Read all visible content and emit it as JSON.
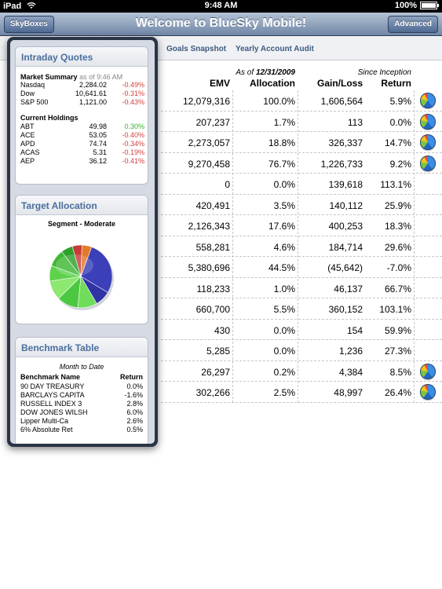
{
  "status": {
    "device": "iPad",
    "time": "9:48 AM",
    "battery": "100%",
    "battery_level": 1.0
  },
  "nav": {
    "title": "Welcome to BlueSky Mobile!",
    "left_button": "SkyBoxes",
    "right_button": "Advanced"
  },
  "tabs": [
    {
      "label": "Goals Snapshot"
    },
    {
      "label": "Yearly Account Audit"
    }
  ],
  "table": {
    "as_of_prefix": "As of ",
    "as_of_date": "12/31/2009",
    "since_inception": "Since Inception",
    "headers": {
      "emv": "EMV",
      "allocation": "Allocation",
      "gain": "Gain/Loss",
      "return": "Return"
    },
    "rows": [
      {
        "emv": "12,079,316",
        "alloc": "100.0%",
        "gain": "1,606,564",
        "ret": "5.9%",
        "pie": true
      },
      {
        "emv": "207,237",
        "alloc": "1.7%",
        "gain": "113",
        "ret": "0.0%",
        "pie": true
      },
      {
        "emv": "2,273,057",
        "alloc": "18.8%",
        "gain": "326,337",
        "ret": "14.7%",
        "pie": true
      },
      {
        "emv": "9,270,458",
        "alloc": "76.7%",
        "gain": "1,226,733",
        "ret": "9.2%",
        "pie": true
      },
      {
        "emv": "0",
        "alloc": "0.0%",
        "gain": "139,618",
        "ret": "113.1%",
        "pie": false
      },
      {
        "emv": "420,491",
        "alloc": "3.5%",
        "gain": "140,112",
        "ret": "25.9%",
        "pie": false
      },
      {
        "emv": "2,126,343",
        "alloc": "17.6%",
        "gain": "400,253",
        "ret": "18.3%",
        "pie": false
      },
      {
        "emv": "558,281",
        "alloc": "4.6%",
        "gain": "184,714",
        "ret": "29.6%",
        "pie": false
      },
      {
        "emv": "5,380,696",
        "alloc": "44.5%",
        "gain": "(45,642)",
        "ret": "-7.0%",
        "pie": false
      },
      {
        "emv": "118,233",
        "alloc": "1.0%",
        "gain": "46,137",
        "ret": "66.7%",
        "pie": false
      },
      {
        "emv": "660,700",
        "alloc": "5.5%",
        "gain": "360,152",
        "ret": "103.1%",
        "pie": false
      },
      {
        "emv": "430",
        "alloc": "0.0%",
        "gain": "154",
        "ret": "59.9%",
        "pie": false
      },
      {
        "emv": "5,285",
        "alloc": "0.0%",
        "gain": "1,236",
        "ret": "27.3%",
        "pie": false
      },
      {
        "emv": "26,297",
        "alloc": "0.2%",
        "gain": "4,384",
        "ret": "8.5%",
        "pie": true
      },
      {
        "emv": "302,266",
        "alloc": "2.5%",
        "gain": "48,997",
        "ret": "26.4%",
        "pie": true
      }
    ]
  },
  "popover": {
    "intraday": {
      "title": "Intraday Quotes",
      "market_title": "Market Summary",
      "market_asof": "as of 9:46 AM",
      "market": [
        {
          "name": "Nasdaq",
          "value": "2,284.02",
          "pct": "-0.49%"
        },
        {
          "name": "Dow",
          "value": "10,641.61",
          "pct": "-0.31%"
        },
        {
          "name": "S&P 500",
          "value": "1,121.00",
          "pct": "-0.43%"
        }
      ],
      "holdings_title": "Current Holdings",
      "holdings": [
        {
          "name": "ABT",
          "value": "49.98",
          "pct": "0.30%"
        },
        {
          "name": "ACE",
          "value": "53.05",
          "pct": "-0.40%"
        },
        {
          "name": "APD",
          "value": "74.74",
          "pct": "-0.34%"
        },
        {
          "name": "ACAS",
          "value": "5.31",
          "pct": "-0.19%"
        },
        {
          "name": "AEP",
          "value": "36.12",
          "pct": "-0.41%"
        }
      ]
    },
    "target": {
      "title": "Target Allocation",
      "segment": "Segment - Moderate",
      "slices": [
        {
          "value": 28,
          "color": "#3b3fb8"
        },
        {
          "value": 8,
          "color": "#2f33a3"
        },
        {
          "value": 10,
          "color": "#6fdc5a"
        },
        {
          "value": 11,
          "color": "#4cc840"
        },
        {
          "value": 10,
          "color": "#8de872"
        },
        {
          "value": 8,
          "color": "#5fd24d"
        },
        {
          "value": 9,
          "color": "#3fb735"
        },
        {
          "value": 6,
          "color": "#2ea02a"
        },
        {
          "value": 5,
          "color": "#c83a3a"
        },
        {
          "value": 5,
          "color": "#e27a2a"
        }
      ]
    },
    "benchmark": {
      "title": "Benchmark Table",
      "subtitle": "Month to Date",
      "head_name": "Benchmark Name",
      "head_return": "Return",
      "rows": [
        {
          "name": "90 DAY TREASURY",
          "ret": "0.0%"
        },
        {
          "name": "BARCLAYS CAPITA",
          "ret": "-1.6%"
        },
        {
          "name": "RUSSELL INDEX 3",
          "ret": "2.8%"
        },
        {
          "name": "DOW JONES WILSH",
          "ret": "6.0%"
        },
        {
          "name": "Lipper Multi-Ca",
          "ret": "2.6%"
        },
        {
          "name": "6% Absolute Ret",
          "ret": "0.5%"
        }
      ]
    }
  }
}
